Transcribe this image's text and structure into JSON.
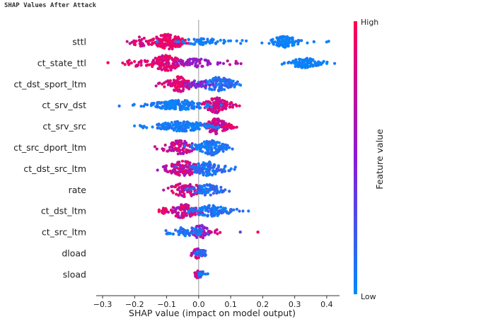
{
  "page": {
    "title": "SHAP Values After Attack"
  },
  "colors": {
    "high": "#ff0052",
    "mid": "#8a1cd6",
    "low": "#008bfb",
    "axis": "#333333",
    "zero_line": "#999999"
  },
  "chart_data": {
    "type": "scatter",
    "subtype": "shap-beeswarm",
    "title": "SHAP Values After Attack",
    "xlabel": "SHAP value (impact on model output)",
    "ylabel": "",
    "xlim": [
      -0.32,
      0.44
    ],
    "xticks": [
      "−0.3",
      "−0.2",
      "−0.1",
      "0.0",
      "0.1",
      "0.2",
      "0.3",
      "0.4"
    ],
    "xtick_values": [
      -0.3,
      -0.2,
      -0.1,
      0.0,
      0.1,
      0.2,
      0.3,
      0.4
    ],
    "grid": false,
    "colorbar": {
      "label": "Feature value",
      "high": "High",
      "low": "Low"
    },
    "features": [
      {
        "name": "sttl",
        "clusters": [
          {
            "c": -0.095,
            "s": 0.03,
            "n": 140,
            "w": 11,
            "col": [
              0.8,
              1.0
            ]
          },
          {
            "c": -0.18,
            "s": 0.02,
            "n": 25,
            "w": 7,
            "col": [
              0.7,
              0.95
            ]
          },
          {
            "c": 0.01,
            "s": 0.04,
            "n": 55,
            "w": 5,
            "col": [
              0.0,
              0.15
            ]
          },
          {
            "c": 0.27,
            "s": 0.025,
            "n": 90,
            "w": 8,
            "col": [
              0.0,
              0.1
            ]
          },
          {
            "c": 0.13,
            "s": 0.01,
            "n": 3,
            "w": 3,
            "col": [
              0.0,
              0.1
            ]
          },
          {
            "c": 0.395,
            "s": 0.005,
            "n": 2,
            "w": 2,
            "col": [
              0.0,
              0.1
            ]
          }
        ]
      },
      {
        "name": "ct_state_ttl",
        "clusters": [
          {
            "c": -0.1,
            "s": 0.03,
            "n": 130,
            "w": 11,
            "col": [
              0.75,
              1.0
            ]
          },
          {
            "c": -0.19,
            "s": 0.03,
            "n": 20,
            "w": 5,
            "col": [
              0.75,
              1.0
            ]
          },
          {
            "c": -0.01,
            "s": 0.03,
            "n": 60,
            "w": 6,
            "col": [
              0.4,
              0.7
            ]
          },
          {
            "c": 0.33,
            "s": 0.03,
            "n": 100,
            "w": 7,
            "col": [
              0.0,
              0.1
            ]
          },
          {
            "c": 0.1,
            "s": 0.04,
            "n": 10,
            "w": 3,
            "col": [
              0.5,
              0.8
            ]
          },
          {
            "c": -0.275,
            "s": 0.005,
            "n": 2,
            "w": 2,
            "col": [
              0.9,
              1.0
            ]
          }
        ]
      },
      {
        "name": "ct_dst_sport_ltm",
        "clusters": [
          {
            "c": -0.06,
            "s": 0.025,
            "n": 110,
            "w": 11,
            "col": [
              0.7,
              1.0
            ]
          },
          {
            "c": 0.06,
            "s": 0.03,
            "n": 120,
            "w": 10,
            "col": [
              0.0,
              0.25
            ]
          },
          {
            "c": 0.0,
            "s": 0.02,
            "n": 30,
            "w": 6,
            "col": [
              0.3,
              0.6
            ]
          }
        ]
      },
      {
        "name": "ct_srv_dst",
        "clusters": [
          {
            "c": 0.055,
            "s": 0.02,
            "n": 100,
            "w": 11,
            "col": [
              0.6,
              0.95
            ]
          },
          {
            "c": -0.06,
            "s": 0.05,
            "n": 160,
            "w": 7,
            "col": [
              0.0,
              0.15
            ]
          },
          {
            "c": 0.1,
            "s": 0.01,
            "n": 10,
            "w": 4,
            "col": [
              0.85,
              1.0
            ]
          }
        ]
      },
      {
        "name": "ct_srv_src",
        "clusters": [
          {
            "c": 0.055,
            "s": 0.02,
            "n": 100,
            "w": 11,
            "col": [
              0.6,
              0.95
            ]
          },
          {
            "c": -0.05,
            "s": 0.05,
            "n": 160,
            "w": 7,
            "col": [
              0.0,
              0.15
            ]
          },
          {
            "c": 0.1,
            "s": 0.01,
            "n": 10,
            "w": 4,
            "col": [
              0.85,
              1.0
            ]
          }
        ]
      },
      {
        "name": "ct_src_dport_ltm",
        "clusters": [
          {
            "c": -0.06,
            "s": 0.03,
            "n": 90,
            "w": 10,
            "col": [
              0.55,
              1.0
            ]
          },
          {
            "c": 0.04,
            "s": 0.025,
            "n": 130,
            "w": 11,
            "col": [
              0.0,
              0.2
            ]
          }
        ]
      },
      {
        "name": "ct_dst_src_ltm",
        "clusters": [
          {
            "c": -0.05,
            "s": 0.03,
            "n": 110,
            "w": 11,
            "col": [
              0.55,
              1.0
            ]
          },
          {
            "c": 0.03,
            "s": 0.03,
            "n": 110,
            "w": 10,
            "col": [
              0.0,
              0.25
            ]
          }
        ]
      },
      {
        "name": "rate",
        "clusters": [
          {
            "c": -0.04,
            "s": 0.03,
            "n": 80,
            "w": 10,
            "col": [
              0.55,
              1.0
            ]
          },
          {
            "c": 0.03,
            "s": 0.025,
            "n": 70,
            "w": 8,
            "col": [
              0.0,
              0.25
            ]
          }
        ]
      },
      {
        "name": "ct_dst_ltm",
        "clusters": [
          {
            "c": -0.05,
            "s": 0.03,
            "n": 90,
            "w": 10,
            "col": [
              0.55,
              1.0
            ]
          },
          {
            "c": 0.04,
            "s": 0.035,
            "n": 110,
            "w": 8,
            "col": [
              0.0,
              0.2
            ]
          },
          {
            "c": -0.11,
            "s": 0.01,
            "n": 8,
            "w": 4,
            "col": [
              0.85,
              1.0
            ]
          }
        ]
      },
      {
        "name": "ct_src_ltm",
        "clusters": [
          {
            "c": 0.005,
            "s": 0.015,
            "n": 50,
            "w": 10,
            "col": [
              0.4,
              0.8
            ]
          },
          {
            "c": -0.04,
            "s": 0.03,
            "n": 70,
            "w": 7,
            "col": [
              0.0,
              0.2
            ]
          },
          {
            "c": 0.05,
            "s": 0.01,
            "n": 10,
            "w": 4,
            "col": [
              0.7,
              1.0
            ]
          }
        ]
      },
      {
        "name": "dload",
        "clusters": [
          {
            "c": -0.005,
            "s": 0.012,
            "n": 40,
            "w": 7,
            "col": [
              0.55,
              1.0
            ]
          },
          {
            "c": 0.01,
            "s": 0.01,
            "n": 30,
            "w": 5,
            "col": [
              0.0,
              0.3
            ]
          }
        ]
      },
      {
        "name": "sload",
        "clusters": [
          {
            "c": -0.003,
            "s": 0.006,
            "n": 20,
            "w": 5,
            "col": [
              0.55,
              1.0
            ]
          },
          {
            "c": 0.008,
            "s": 0.008,
            "n": 20,
            "w": 5,
            "col": [
              0.0,
              0.3
            ]
          }
        ]
      }
    ],
    "outliers": [
      {
        "feature": "ct_src_ltm",
        "x": 0.185,
        "v": 0.95
      },
      {
        "feature": "ct_src_ltm",
        "x": 0.13,
        "v": 0.3
      },
      {
        "feature": "ct_state_ttl",
        "x": -0.21,
        "v": 0.95
      },
      {
        "feature": "ct_srv_dst",
        "x": -0.205,
        "v": 0.05
      },
      {
        "feature": "ct_srv_src",
        "x": -0.17,
        "v": 0.05
      },
      {
        "feature": "sttl",
        "x": 0.36,
        "v": 0.05
      }
    ]
  }
}
